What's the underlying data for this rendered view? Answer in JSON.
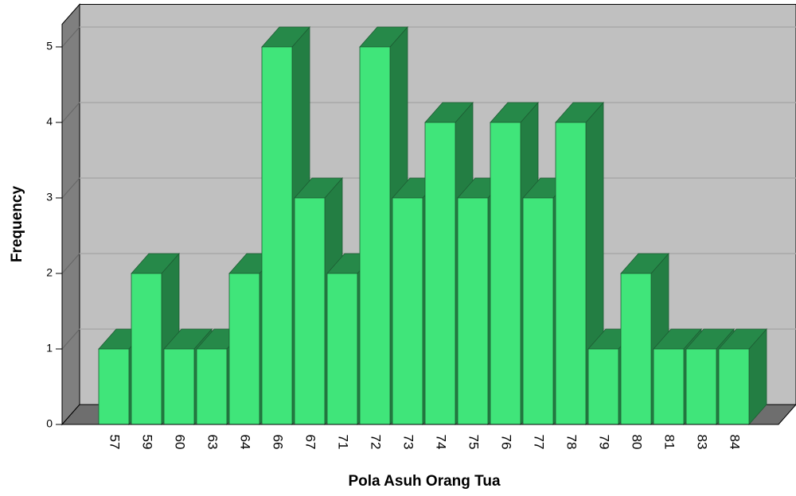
{
  "chart_data": {
    "type": "bar3d",
    "x_label": "Pola Asuh Orang Tua",
    "y_label": "Frequency",
    "categories": [
      "57",
      "59",
      "60",
      "63",
      "64",
      "66",
      "67",
      "71",
      "72",
      "73",
      "74",
      "75",
      "76",
      "77",
      "78",
      "79",
      "80",
      "81",
      "83",
      "84"
    ],
    "values": [
      1,
      2,
      1,
      1,
      2,
      5,
      3,
      2,
      5,
      3,
      4,
      3,
      4,
      3,
      4,
      1,
      2,
      1,
      1,
      1
    ],
    "color": "#40e57a",
    "ylim": [
      0,
      5.3
    ],
    "yticks": [
      0,
      1,
      2,
      3,
      4,
      5
    ],
    "grid": true
  }
}
